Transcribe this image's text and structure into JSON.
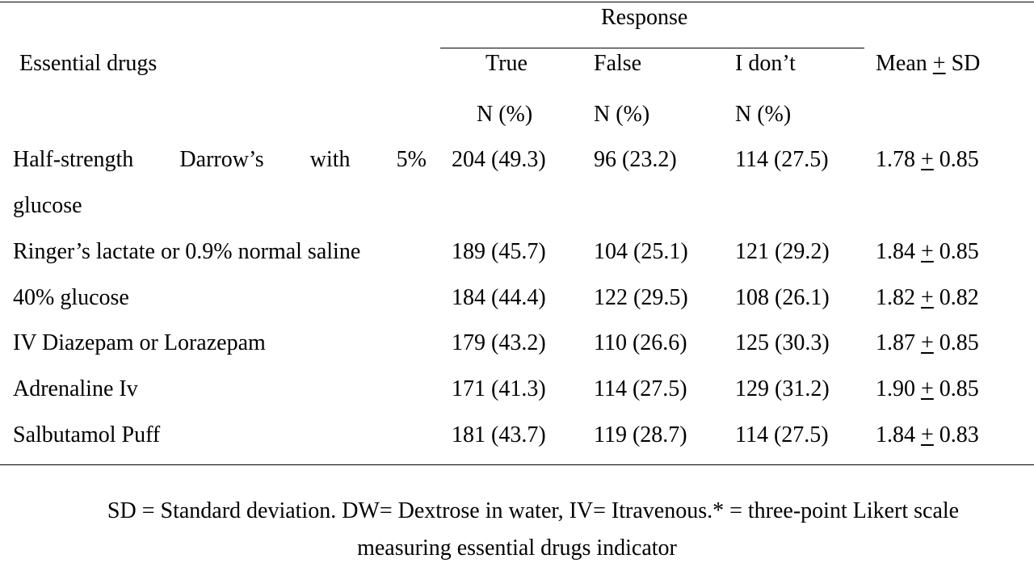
{
  "table": {
    "header": {
      "col_main": "Essential drugs",
      "span_label": "Response",
      "col_true": "True",
      "col_false": "False",
      "col_dont": "I don’t",
      "col_mean_prefix": "Mean ",
      "col_mean_pm": "+",
      "col_mean_suffix": " SD",
      "unit_true": "N (%)",
      "unit_false": "N (%)",
      "unit_dont": "N (%)"
    },
    "rows": [
      {
        "label_words": [
          "Half-strength",
          "Darrow’s",
          "with",
          "5%"
        ],
        "label_cont": "glucose",
        "true": "204 (49.3)",
        "false": "96 (23.2)",
        "dont": "114 (27.5)",
        "mean": "1.78",
        "pm": "+",
        "sd": "0.85"
      },
      {
        "label": "Ringer’s lactate or 0.9% normal saline",
        "true": "189 (45.7)",
        "false": "104 (25.1)",
        "dont": "121 (29.2)",
        "mean": "1.84",
        "pm": "+",
        "sd": "0.85"
      },
      {
        "label": "40% glucose",
        "true": "184 (44.4)",
        "false": "122 (29.5)",
        "dont": "108 (26.1)",
        "mean": "1.82",
        "pm": "+",
        "sd": "0.82"
      },
      {
        "label": "IV Diazepam or Lorazepam",
        "true": "179 (43.2)",
        "false": "110 (26.6)",
        "dont": "125 (30.3)",
        "mean": "1.87",
        "pm": "+",
        "sd": "0.85"
      },
      {
        "label": "Adrenaline Iv",
        "true": "171 (41.3)",
        "false": "114 (27.5)",
        "dont": "129 (31.2)",
        "mean": "1.90",
        "pm": "+",
        "sd": "0.85"
      },
      {
        "label": "Salbutamol Puff",
        "true": "181 (43.7)",
        "false": "119 (28.7)",
        "dont": "114 (27.5)",
        "mean": "1.84",
        "pm": "+",
        "sd": "0.83"
      }
    ]
  },
  "footnote": {
    "line1": "SD = Standard deviation. DW= Dextrose in water, IV= Itravenous.* = three-point Likert scale",
    "line2": "measuring essential drugs indicator"
  }
}
